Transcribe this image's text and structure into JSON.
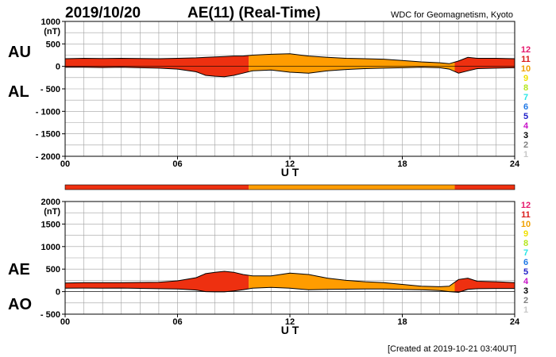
{
  "header": {
    "date": "2019/10/20",
    "title": "AE(11) (Real-Time)",
    "source": "WDC for Geomagnetism, Kyoto"
  },
  "footer": {
    "created": "[Created at 2019-10-21 03:40UT]"
  },
  "legend": {
    "levels": [
      {
        "label": "12",
        "color": "#e6196e"
      },
      {
        "label": "11",
        "color": "#d91a1a"
      },
      {
        "label": "10",
        "color": "#f0a000"
      },
      {
        "label": "9",
        "color": "#f0e000"
      },
      {
        "label": "8",
        "color": "#b4e61e"
      },
      {
        "label": "7",
        "color": "#28e6e6"
      },
      {
        "label": "6",
        "color": "#1e78e6"
      },
      {
        "label": "5",
        "color": "#2020c8"
      },
      {
        "label": "4",
        "color": "#c814c8"
      },
      {
        "label": "3",
        "color": "#000000"
      },
      {
        "label": "2",
        "color": "#808080"
      },
      {
        "label": "1",
        "color": "#c8c8c8"
      }
    ]
  },
  "colors": {
    "red": "#ee3010",
    "orange": "#ff9c00",
    "grid": "#a0a0a0"
  },
  "chart_data": [
    {
      "type": "area",
      "panel": "AU/AL",
      "side_labels": [
        "AU",
        "AL"
      ],
      "unit": "(nT)",
      "xlabel": "U T",
      "xlim": [
        0,
        24
      ],
      "x_ticks": [
        "00",
        "06",
        "12",
        "18",
        "24"
      ],
      "ylim": [
        -2000,
        1000
      ],
      "y_ticks": [
        "1000",
        "500",
        "0",
        "- 500",
        "- 1000",
        "- 1500",
        "- 2000"
      ],
      "x": [
        0,
        1,
        2,
        3,
        4,
        5,
        6,
        7,
        7.5,
        8,
        8.5,
        9,
        9.5,
        10,
        11,
        12,
        13,
        14,
        15,
        16,
        17,
        18,
        19,
        20,
        20.5,
        21,
        21.5,
        22,
        23,
        24
      ],
      "series": [
        {
          "name": "AU",
          "values": [
            170,
            180,
            175,
            180,
            175,
            170,
            180,
            190,
            200,
            210,
            220,
            230,
            230,
            250,
            270,
            280,
            230,
            200,
            180,
            170,
            160,
            130,
            100,
            80,
            60,
            120,
            200,
            180,
            180,
            170
          ]
        },
        {
          "name": "AL",
          "values": [
            -20,
            -20,
            -25,
            -20,
            -30,
            -40,
            -60,
            -120,
            -200,
            -220,
            -230,
            -200,
            -150,
            -100,
            -80,
            -130,
            -150,
            -100,
            -70,
            -50,
            -40,
            -30,
            -20,
            -30,
            -60,
            -150,
            -100,
            -50,
            -40,
            -30
          ]
        }
      ],
      "activity_color": [
        {
          "from": 0,
          "to": 9.8,
          "level": "11"
        },
        {
          "from": 9.8,
          "to": 20.8,
          "level": "10"
        },
        {
          "from": 20.8,
          "to": 24,
          "level": "11"
        }
      ]
    },
    {
      "type": "area",
      "panel": "AE/AO",
      "side_labels": [
        "AE",
        "AO"
      ],
      "unit": "(nT)",
      "xlabel": "U T",
      "xlim": [
        0,
        24
      ],
      "x_ticks": [
        "00",
        "06",
        "12",
        "18",
        "24"
      ],
      "ylim": [
        -500,
        2000
      ],
      "y_ticks": [
        "2000",
        "1500",
        "1000",
        "500",
        "0",
        "- 500"
      ],
      "x": [
        0,
        1,
        2,
        3,
        4,
        5,
        6,
        7,
        7.5,
        8,
        8.5,
        9,
        9.5,
        10,
        11,
        12,
        13,
        14,
        15,
        16,
        17,
        18,
        19,
        20,
        20.5,
        21,
        21.5,
        22,
        23,
        24
      ],
      "series": [
        {
          "name": "AE",
          "values": [
            190,
            200,
            200,
            200,
            205,
            210,
            240,
            310,
            400,
            430,
            450,
            430,
            380,
            350,
            350,
            410,
            380,
            300,
            250,
            220,
            200,
            160,
            120,
            110,
            120,
            270,
            300,
            230,
            220,
            200
          ]
        },
        {
          "name": "AO",
          "values": [
            75,
            80,
            75,
            80,
            72,
            65,
            60,
            35,
            0,
            -5,
            -5,
            15,
            40,
            75,
            95,
            75,
            40,
            50,
            55,
            60,
            60,
            50,
            40,
            25,
            0,
            -15,
            50,
            65,
            70,
            70
          ]
        }
      ],
      "activity_color": [
        {
          "from": 0,
          "to": 9.8,
          "level": "11"
        },
        {
          "from": 9.8,
          "to": 20.8,
          "level": "10"
        },
        {
          "from": 20.8,
          "to": 24,
          "level": "11"
        }
      ]
    }
  ]
}
